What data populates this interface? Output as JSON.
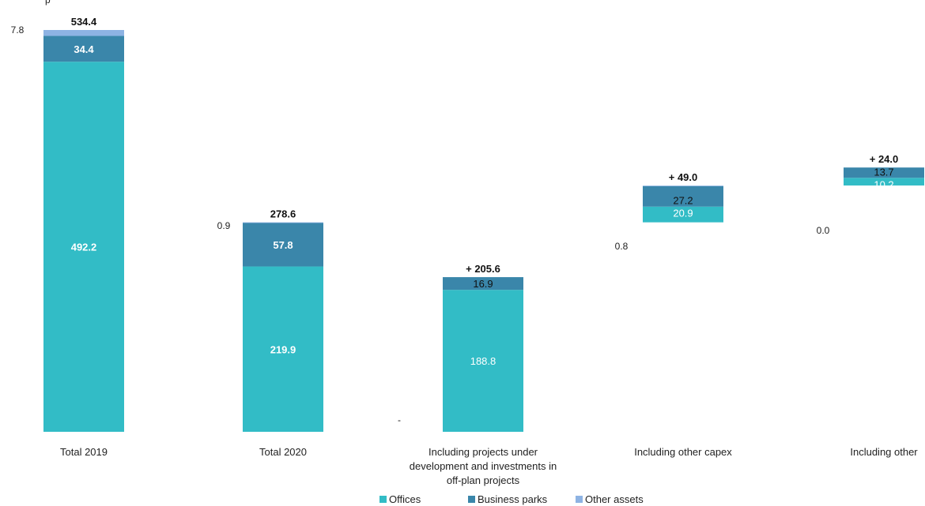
{
  "title_fragment": "p",
  "chart_data": {
    "type": "bar",
    "stacked": true,
    "categories": [
      "Total 2019",
      "Total 2020",
      "Including projects under development and investments in off-plan projects",
      "Including other capex",
      "Including other"
    ],
    "category_label_lines": [
      [
        "Total 2019"
      ],
      [
        "Total 2020"
      ],
      [
        "Including projects under",
        "development and investments in",
        "off-plan projects"
      ],
      [
        "Including other capex"
      ],
      [
        "Including other"
      ]
    ],
    "series": [
      {
        "name": "Offices",
        "color": "#32BCC6",
        "values": [
          492.2,
          219.9,
          188.8,
          20.9,
          10.2
        ]
      },
      {
        "name": "Business parks",
        "color": "#3A86AA",
        "values": [
          34.4,
          57.8,
          16.9,
          27.2,
          13.7
        ]
      },
      {
        "name": "Other assets",
        "color": "#8EB3E3",
        "values": [
          7.8,
          0.9,
          0,
          0.8,
          0.0
        ]
      }
    ],
    "value_labels": [
      [
        "492.2",
        "219.9",
        "188.8",
        "20.9",
        "10.2"
      ],
      [
        "34.4",
        "57.8",
        "16.9",
        "27.2",
        "13.7"
      ],
      [
        "7.8",
        "0.9",
        "-",
        "0.8",
        "0.0"
      ]
    ],
    "totals": [
      "534.4",
      "278.6",
      "+ 205.6",
      "+ 49.0",
      "+ 24.0"
    ],
    "floating_base": [
      0,
      0,
      0,
      278.6,
      327.6
    ],
    "ylim": [
      0,
      534.4
    ],
    "grid": false,
    "legend": "bottom-center"
  }
}
